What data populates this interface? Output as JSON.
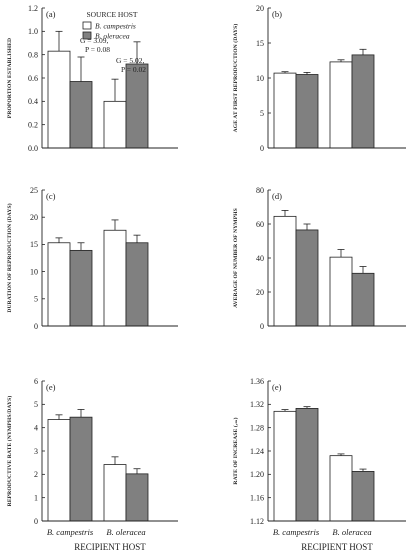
{
  "legend": {
    "title": "SOURCE HOST",
    "items": [
      {
        "name": "B. campestris",
        "color": "#ffffff"
      },
      {
        "name": "B. oleracea",
        "color": "#808080"
      }
    ]
  },
  "xlabel": "RECIPIENT HOST",
  "categories": [
    "B. campestris",
    "B. oleracea"
  ],
  "chart_data": [
    {
      "type": "bar",
      "label": "(a)",
      "ylabel": "PROPORTION ESTABLISHED",
      "ylim": [
        0,
        1.2
      ],
      "ticks": [
        "0.0",
        "0.2",
        "0.4",
        "0.6",
        "0.8",
        "1.0",
        "1.2"
      ],
      "categories": [
        "B. campestris",
        "B. oleracea"
      ],
      "series": [
        {
          "name": "B. campestris",
          "values": [
            0.83,
            0.4
          ],
          "errors": [
            0.17,
            0.19
          ]
        },
        {
          "name": "B. oleracea",
          "values": [
            0.57,
            0.72
          ],
          "errors": [
            0.21,
            0.19
          ]
        }
      ],
      "annotations": [
        {
          "line1": "G = 3.09,",
          "line2": "P = 0.08"
        },
        {
          "line1": "G = 5.02,",
          "line2": "P = 0.02"
        }
      ]
    },
    {
      "type": "bar",
      "label": "(b)",
      "ylabel": "AGE AT FIRST REPRODUCTION (DAYS)",
      "ylim": [
        0,
        20
      ],
      "ticks": [
        "0",
        "5",
        "10",
        "15",
        "20"
      ],
      "categories": [
        "B. campestris",
        "B. oleracea"
      ],
      "series": [
        {
          "name": "B. campestris",
          "values": [
            10.7,
            12.3
          ],
          "errors": [
            0.2,
            0.3
          ]
        },
        {
          "name": "B. oleracea",
          "values": [
            10.5,
            13.3
          ],
          "errors": [
            0.3,
            0.8
          ]
        }
      ]
    },
    {
      "type": "bar",
      "label": "(c)",
      "ylabel": "DURATION OF REPRODUCTION (DAYS)",
      "ylim": [
        0,
        25
      ],
      "ticks": [
        "0",
        "5",
        "10",
        "15",
        "20",
        "25"
      ],
      "categories": [
        "B. campestris",
        "B. oleracea"
      ],
      "series": [
        {
          "name": "B. campestris",
          "values": [
            15.3,
            17.6
          ],
          "errors": [
            0.9,
            1.9
          ]
        },
        {
          "name": "B. oleracea",
          "values": [
            13.9,
            15.3
          ],
          "errors": [
            1.4,
            1.4
          ]
        }
      ]
    },
    {
      "type": "bar",
      "label": "(d)",
      "ylabel": "AVERAGE OF NUMBER OF NYMPHS",
      "ylim": [
        0,
        80
      ],
      "ticks": [
        "0",
        "20",
        "40",
        "60",
        "80"
      ],
      "categories": [
        "B. campestris",
        "B. oleracea"
      ],
      "series": [
        {
          "name": "B. campestris",
          "values": [
            64.5,
            40.5
          ],
          "errors": [
            3.5,
            4.5
          ]
        },
        {
          "name": "B. oleracea",
          "values": [
            56.5,
            31.0
          ],
          "errors": [
            3.5,
            4.0
          ]
        }
      ]
    },
    {
      "type": "bar",
      "label": "(e)",
      "ylabel": "REPRODUCTIVE RATE (NYMPHS/DAYS)",
      "ylim": [
        0,
        6
      ],
      "ticks": [
        "0",
        "1",
        "2",
        "3",
        "4",
        "5",
        "6"
      ],
      "categories": [
        "B. campestris",
        "B. oleracea"
      ],
      "series": [
        {
          "name": "B. campestris",
          "values": [
            4.35,
            2.42
          ],
          "errors": [
            0.2,
            0.33
          ]
        },
        {
          "name": "B. oleracea",
          "values": [
            4.45,
            2.02
          ],
          "errors": [
            0.33,
            0.22
          ]
        }
      ]
    },
    {
      "type": "bar",
      "label": "(e)",
      "ylabel": "RATE OF INCREASE (ᵣₘ)",
      "ylim": [
        1.12,
        1.36
      ],
      "ticks": [
        "1.12",
        "1.16",
        "1.20",
        "1.24",
        "1.28",
        "1.32",
        "1.36"
      ],
      "categories": [
        "B. campestris",
        "B. oleracea"
      ],
      "series": [
        {
          "name": "B. campestris",
          "values": [
            1.308,
            1.232
          ],
          "errors": [
            0.003,
            0.003
          ]
        },
        {
          "name": "B. oleracea",
          "values": [
            1.313,
            1.205
          ],
          "errors": [
            0.003,
            0.004
          ]
        }
      ]
    }
  ]
}
